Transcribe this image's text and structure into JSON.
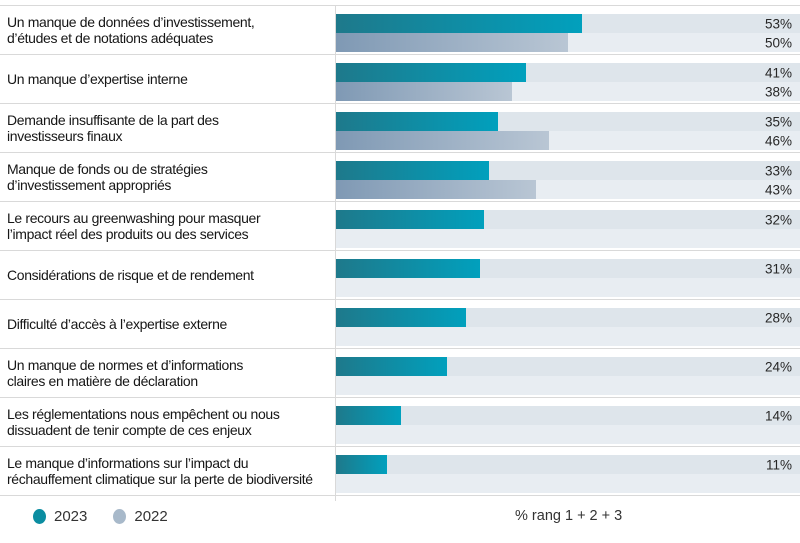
{
  "chart_data": {
    "type": "bar",
    "orientation": "horizontal",
    "title": "",
    "unit": "%",
    "xlim": [
      0,
      100
    ],
    "grid": false,
    "legend_position": "bottom-left",
    "axis_note": "% rang 1 + 2 + 3",
    "categories": [
      "Un manque de données d’investissement,\nd’études et de notations adéquates",
      "Un manque d’expertise interne",
      "Demande insuffisante de la part des\ninvestisseurs finaux",
      "Manque de fonds ou de stratégies\nd’investissement appropriés",
      "Le recours au greenwashing pour masquer\nl’impact réel des produits ou des services",
      "Considérations de risque et de rendement",
      "Difficulté d’accès à l’expertise externe",
      "Un manque de normes et d’informations\nclaires en matière de déclaration",
      "Les réglementations nous empêchent ou nous\ndissuadent de tenir compte de ces enjeux",
      "Le manque d’informations sur l’impact du\nréchauffement climatique sur la perte de biodiversité"
    ],
    "series": [
      {
        "name": "2023",
        "values": [
          53,
          41,
          35,
          33,
          32,
          31,
          28,
          24,
          14,
          11
        ],
        "gradient": [
          "#1e798b",
          "#01a0bd"
        ],
        "legend_color": "#0b8da1"
      },
      {
        "name": "2022",
        "values": [
          50,
          38,
          46,
          43,
          null,
          null,
          null,
          null,
          null,
          null
        ],
        "gradient": [
          "#7f99b4",
          "#b9c6d4"
        ],
        "legend_color": "#a8b9ca"
      }
    ],
    "track_colors": [
      "#dee5eb",
      "#e8edf2"
    ]
  },
  "colors": {
    "separator": "#d9d9d9",
    "label_text": "#161616",
    "value_text": "#262626"
  }
}
